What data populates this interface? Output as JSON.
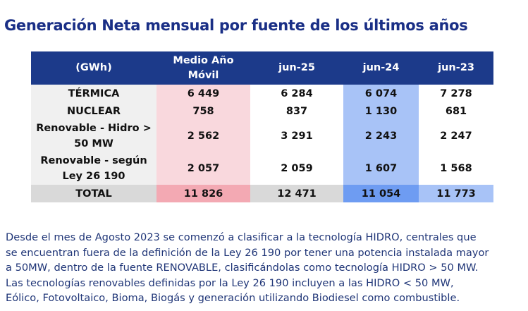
{
  "title": "Generación Neta mensual por fuente de los últimos años",
  "table": {
    "header": [
      "(GWh)",
      "Medio Año Móvil",
      "jun-25",
      "jun-24",
      "jun-23"
    ],
    "rows": [
      [
        "TÉRMICA",
        "6 449",
        "6 284",
        "6 074",
        "7 278"
      ],
      [
        "NUCLEAR",
        "758",
        "837",
        "1 130",
        "681"
      ],
      [
        "Renovable - Hidro > 50 MW",
        "2 562",
        "3 291",
        "2 243",
        "2 247"
      ],
      [
        "Renovable - según Ley 26 190",
        "2 057",
        "2 059",
        "1 607",
        "1 568"
      ],
      [
        "TOTAL",
        "11 826",
        "12 471",
        "11 054",
        "11 773"
      ]
    ]
  },
  "note": [
    "Desde el mes de Agosto 2023 se comenzó a clasificar a la tecnología HIDRO, centrales que",
    "se encuentran fuera de la definición de la Ley 26 190 por tener una potencia instalada mayor",
    "a 50MW, dentro de la fuente RENOVABLE, clasificándolas como tecnología HIDRO > 50 MW.",
    "Las tecnologías renovables definidas por la Ley 26 190 incluyen a las HIDRO < 50 MW,",
    "Eólico, Fotovoltaico, Bioma, Biogás y generación utilizando Biodiesel como combustible."
  ]
}
